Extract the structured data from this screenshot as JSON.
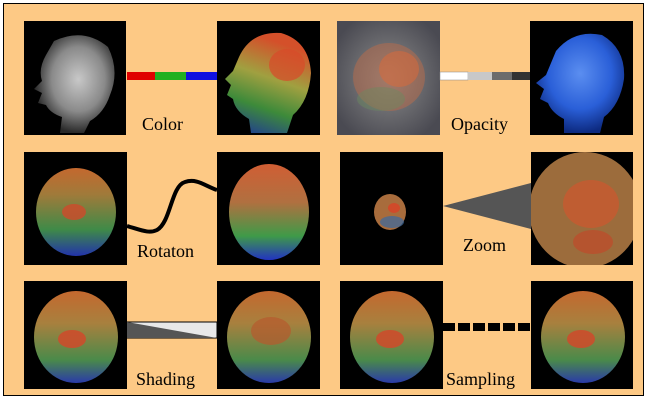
{
  "figure": {
    "labels": {
      "color": "Color",
      "opacity": "Opacity",
      "rotation": "Rotaton",
      "zoom": "Zoom",
      "shading": "Shading",
      "sampling": "Sampling"
    },
    "colors": {
      "background": "#fdc985",
      "border": "#000000",
      "tile_background": "#000000",
      "color_bar": [
        "#e00000",
        "#20b020",
        "#1010e0"
      ],
      "opacity_bar": [
        "#ffffff",
        "#c8c8c8",
        "#707070",
        "#303030"
      ],
      "render_blue": "#2a5fd8",
      "render_red": "#c9492a",
      "render_green": "#7aa63a",
      "grayscale_head": "#9a9a9a"
    }
  }
}
